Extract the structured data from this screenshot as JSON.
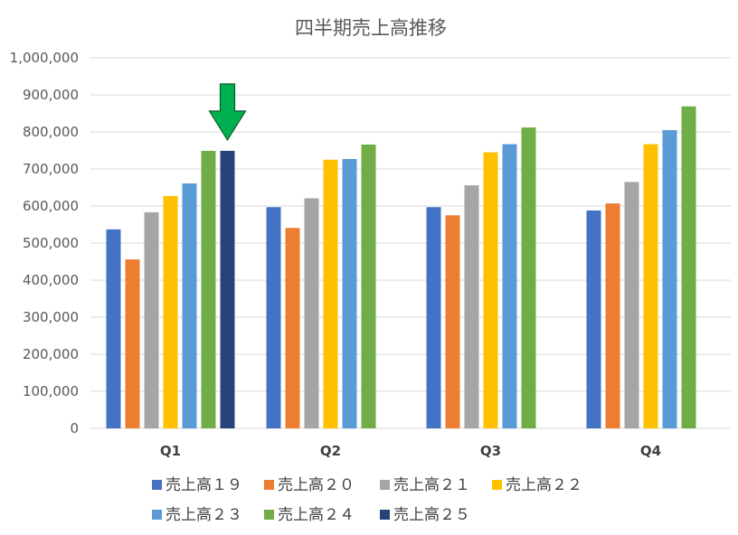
{
  "chart_data": {
    "type": "bar",
    "title": "四半期売上高推移",
    "categories": [
      "Q1",
      "Q2",
      "Q3",
      "Q4"
    ],
    "ylim": [
      0,
      1000000
    ],
    "yticks": [
      "0",
      "100,000",
      "200,000",
      "300,000",
      "400,000",
      "500,000",
      "600,000",
      "700,000",
      "800,000",
      "900,000",
      "1,000,000"
    ],
    "grid": true,
    "legend_position": "bottom",
    "series": [
      {
        "name": "売上高１９",
        "color": "#4472C4",
        "values": [
          537000,
          597000,
          597000,
          588000
        ]
      },
      {
        "name": "売上高２０",
        "color": "#ED7D31",
        "values": [
          456000,
          541000,
          575000,
          607000
        ]
      },
      {
        "name": "売上高２１",
        "color": "#A5A5A5",
        "values": [
          583000,
          621000,
          656000,
          665000
        ]
      },
      {
        "name": "売上高２２",
        "color": "#FFC000",
        "values": [
          627000,
          725000,
          745000,
          767000
        ]
      },
      {
        "name": "売上高２３",
        "color": "#5B9BD5",
        "values": [
          661000,
          727000,
          767000,
          805000
        ]
      },
      {
        "name": "売上高２４",
        "color": "#70AD47",
        "values": [
          749000,
          766000,
          812000,
          869000
        ]
      },
      {
        "name": "売上高２５",
        "color": "#264478",
        "values": [
          749000,
          null,
          null,
          null
        ]
      }
    ],
    "annotations": [
      {
        "type": "arrow",
        "direction": "down",
        "color": "#00B050",
        "target": {
          "series": "売上高２５",
          "category": "Q1"
        }
      }
    ]
  }
}
